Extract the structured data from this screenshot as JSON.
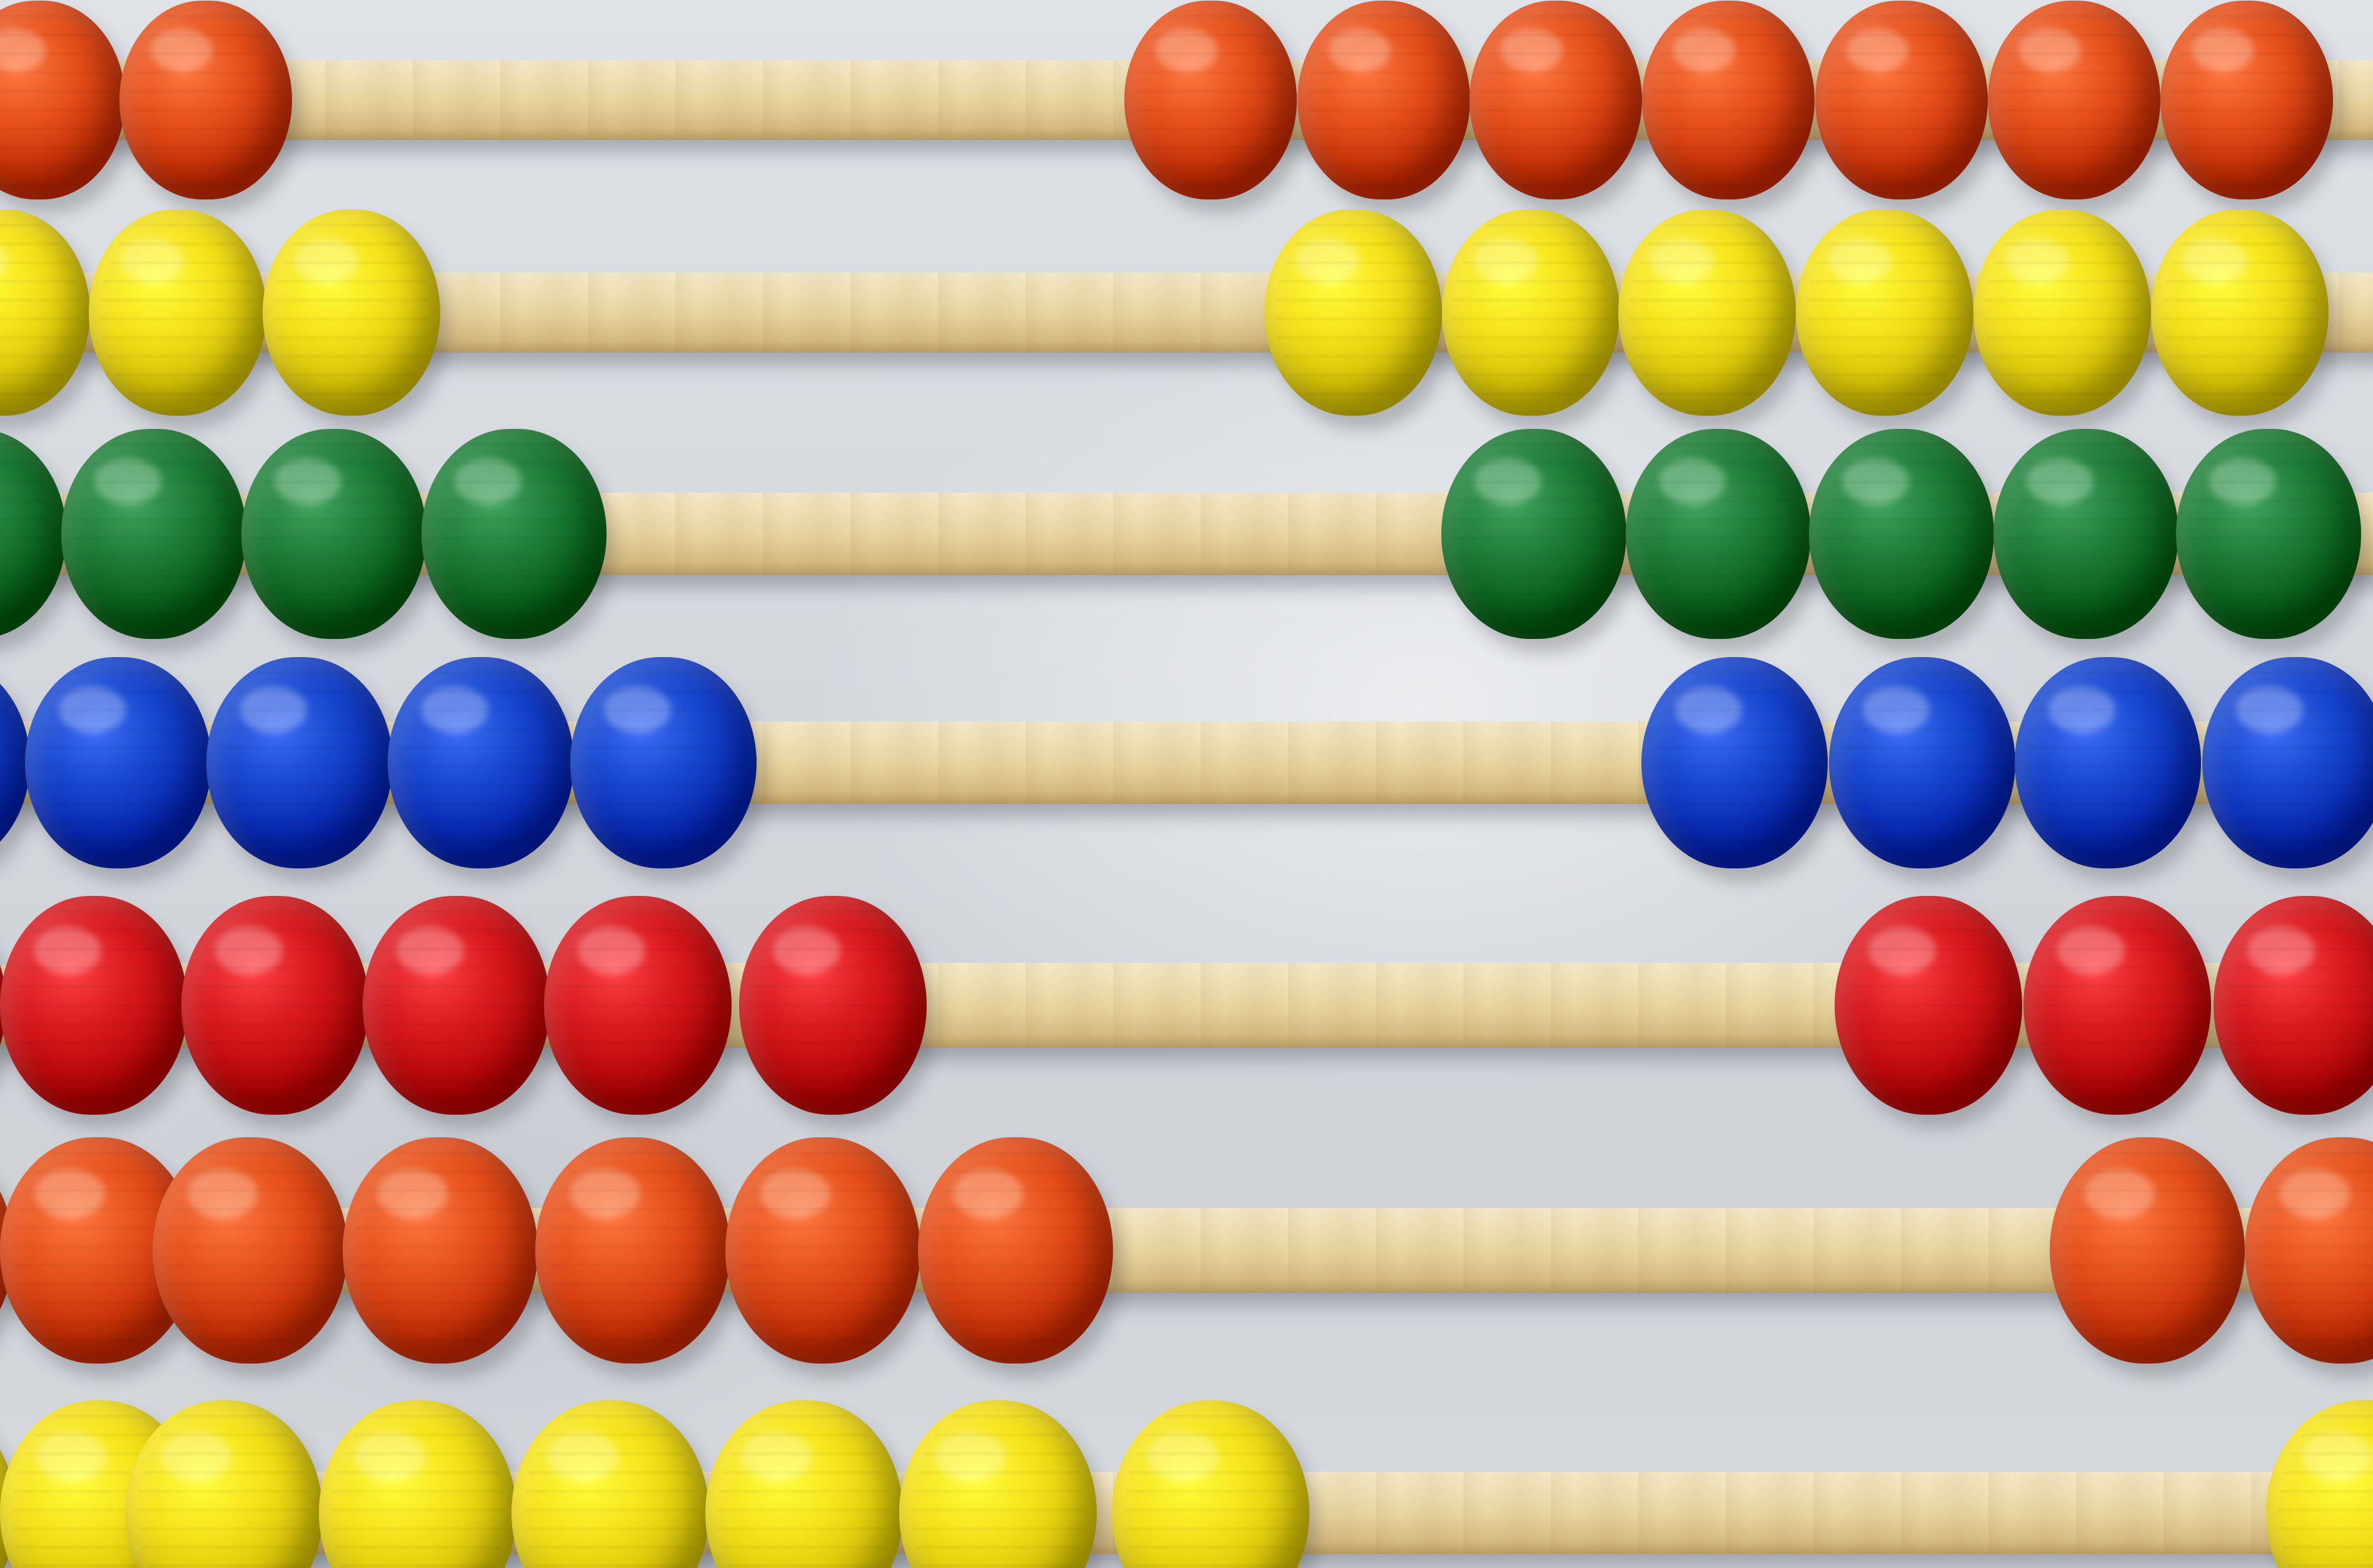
{
  "image": {
    "subject": "abacus",
    "colors": {
      "orange": "#e8521c",
      "yellow": "#f6e21a",
      "green": "#1f7f3a",
      "blue": "#1848d0",
      "red": "#d91a1f",
      "wood": "#ecdcae",
      "wall": "#d7dbe0"
    },
    "rows": [
      {
        "color": "orange",
        "left_beads": 2,
        "right_beads": 7
      },
      {
        "color": "yellow",
        "left_beads": 3,
        "right_beads": 6
      },
      {
        "color": "green",
        "left_beads": 4,
        "right_beads": 5
      },
      {
        "color": "blue",
        "left_beads": 5,
        "right_beads": 4
      },
      {
        "color": "red",
        "left_beads": 6,
        "right_beads": 3
      },
      {
        "color": "orange",
        "left_beads": 7,
        "right_beads": 2
      },
      {
        "color": "yellow",
        "left_beads": 8,
        "right_beads": 1
      }
    ]
  }
}
